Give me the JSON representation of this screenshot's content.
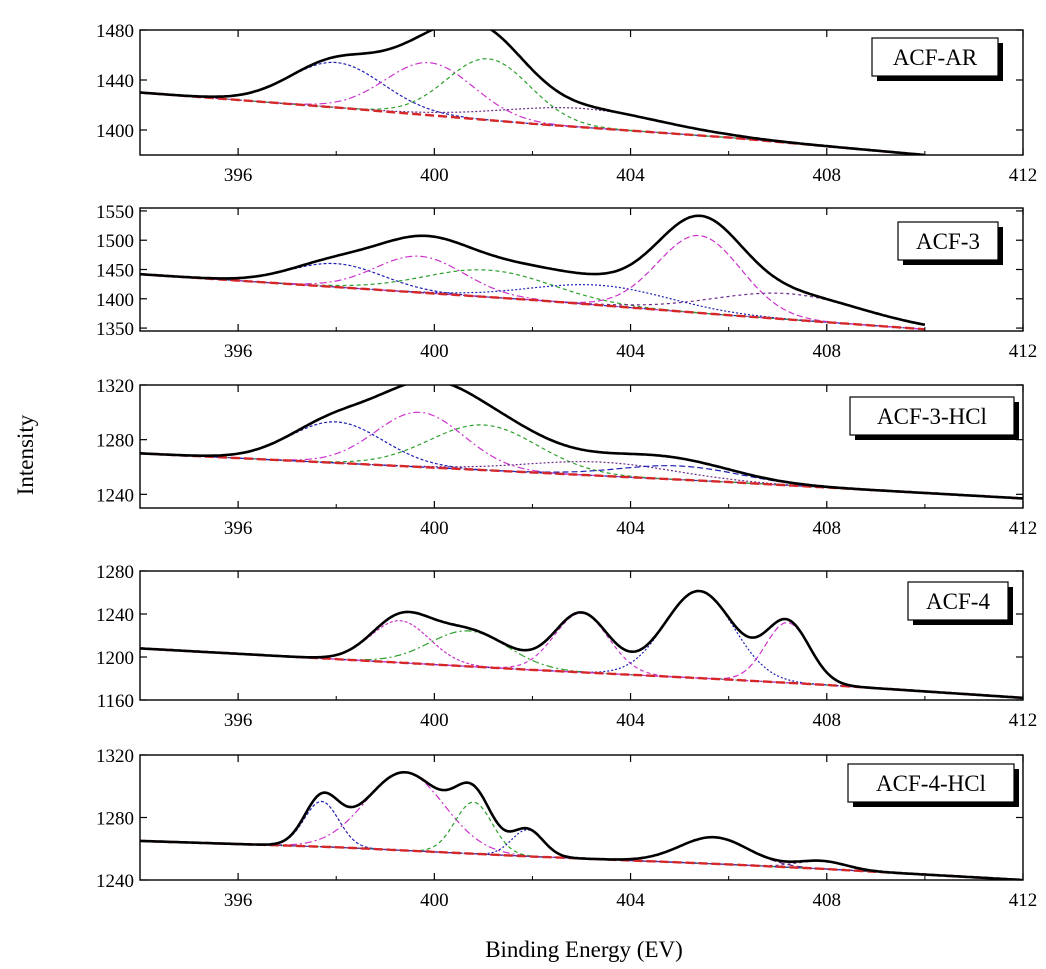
{
  "chart_data": {
    "type": "line",
    "ylabel": "Intensity",
    "xlabel": "Binding Energy (EV)",
    "xlim": [
      394,
      412
    ],
    "x_ticks": [
      396,
      400,
      404,
      408,
      412
    ],
    "colors": {
      "envelope": "#000000",
      "background": "#d62728",
      "comp_blue": "#1f1fb4",
      "comp_magenta": "#cc33cc",
      "comp_green": "#2ca02c",
      "comp_purple": "#6a2a8a"
    },
    "panels": [
      {
        "label": "ACF-AR",
        "ylim": [
          1380,
          1480
        ],
        "y_ticks": [
          1400,
          1440,
          1480
        ],
        "x_end": 410,
        "baseline": [
          [
            394,
            1430
          ],
          [
            398,
            1418
          ],
          [
            402,
            1405
          ],
          [
            406,
            1394
          ],
          [
            410,
            1380
          ]
        ],
        "components": [
          {
            "center": 398.0,
            "height": 36,
            "width": 0.95,
            "color": "comp_blue"
          },
          {
            "center": 399.9,
            "height": 42,
            "width": 0.9,
            "color": "comp_magenta"
          },
          {
            "center": 401.1,
            "height": 49,
            "width": 0.85,
            "color": "comp_green"
          },
          {
            "center": 403.0,
            "height": 15,
            "width": 1.6,
            "color": "comp_purple"
          }
        ]
      },
      {
        "label": "ACF-3",
        "ylim": [
          1345,
          1555
        ],
        "y_ticks": [
          1350,
          1400,
          1450,
          1500,
          1550
        ],
        "x_end": 410,
        "baseline": [
          [
            394,
            1442
          ],
          [
            398,
            1420
          ],
          [
            402,
            1398
          ],
          [
            406,
            1372
          ],
          [
            410,
            1348
          ]
        ],
        "components": [
          {
            "center": 398.0,
            "height": 40,
            "width": 0.95,
            "color": "comp_blue"
          },
          {
            "center": 399.7,
            "height": 62,
            "width": 0.9,
            "color": "comp_magenta"
          },
          {
            "center": 401.1,
            "height": 46,
            "width": 1.3,
            "color": "comp_green"
          },
          {
            "center": 403.4,
            "height": 34,
            "width": 1.4,
            "color": "comp_blue"
          },
          {
            "center": 405.4,
            "height": 132,
            "width": 0.85,
            "color": "comp_magenta"
          },
          {
            "center": 407.2,
            "height": 44,
            "width": 1.5,
            "color": "comp_purple"
          }
        ]
      },
      {
        "label": "ACF-3-HCl",
        "ylim": [
          1230,
          1320
        ],
        "y_ticks": [
          1240,
          1280,
          1320
        ],
        "x_end": 412,
        "baseline": [
          [
            394,
            1270
          ],
          [
            398,
            1263
          ],
          [
            402,
            1256
          ],
          [
            406,
            1249
          ],
          [
            408,
            1245
          ],
          [
            412,
            1237
          ]
        ],
        "components": [
          {
            "center": 398.0,
            "height": 30,
            "width": 0.95,
            "color": "comp_blue"
          },
          {
            "center": 399.7,
            "height": 40,
            "width": 0.9,
            "color": "comp_magenta"
          },
          {
            "center": 401.0,
            "height": 33,
            "width": 1.1,
            "color": "comp_green"
          },
          {
            "center": 403.4,
            "height": 10,
            "width": 1.5,
            "color": "comp_purple"
          },
          {
            "center": 405.0,
            "height": 10,
            "width": 1.2,
            "color": "comp_blue"
          }
        ]
      },
      {
        "label": "ACF-4",
        "ylim": [
          1160,
          1280
        ],
        "y_ticks": [
          1160,
          1200,
          1240,
          1280
        ],
        "x_end": 412,
        "baseline": [
          [
            394,
            1208
          ],
          [
            398,
            1198
          ],
          [
            402,
            1188
          ],
          [
            406,
            1179
          ],
          [
            408,
            1174
          ],
          [
            412,
            1162
          ]
        ],
        "components": [
          {
            "center": 399.3,
            "height": 39,
            "width": 0.6,
            "color": "comp_magenta"
          },
          {
            "center": 400.7,
            "height": 33,
            "width": 0.8,
            "color": "comp_green"
          },
          {
            "center": 403.0,
            "height": 55,
            "width": 0.55,
            "color": "comp_magenta"
          },
          {
            "center": 405.4,
            "height": 81,
            "width": 0.7,
            "color": "comp_blue"
          },
          {
            "center": 407.2,
            "height": 56,
            "width": 0.45,
            "color": "comp_magenta"
          }
        ]
      },
      {
        "label": "ACF-4-HCl",
        "ylim": [
          1240,
          1320
        ],
        "y_ticks": [
          1240,
          1280,
          1320
        ],
        "x_end": 412,
        "baseline": [
          [
            394,
            1265
          ],
          [
            398,
            1261
          ],
          [
            402,
            1255
          ],
          [
            406,
            1250
          ],
          [
            408,
            1247
          ],
          [
            412,
            1240
          ]
        ],
        "components": [
          {
            "center": 397.7,
            "height": 29,
            "width": 0.35,
            "color": "comp_blue"
          },
          {
            "center": 399.4,
            "height": 50,
            "width": 0.8,
            "color": "comp_magenta"
          },
          {
            "center": 400.8,
            "height": 33,
            "width": 0.38,
            "color": "comp_green"
          },
          {
            "center": 401.9,
            "height": 17,
            "width": 0.32,
            "color": "comp_blue"
          },
          {
            "center": 405.7,
            "height": 17,
            "width": 0.7,
            "color": "comp_purple"
          },
          {
            "center": 407.9,
            "height": 5,
            "width": 0.5,
            "color": "comp_purple"
          }
        ]
      }
    ]
  }
}
